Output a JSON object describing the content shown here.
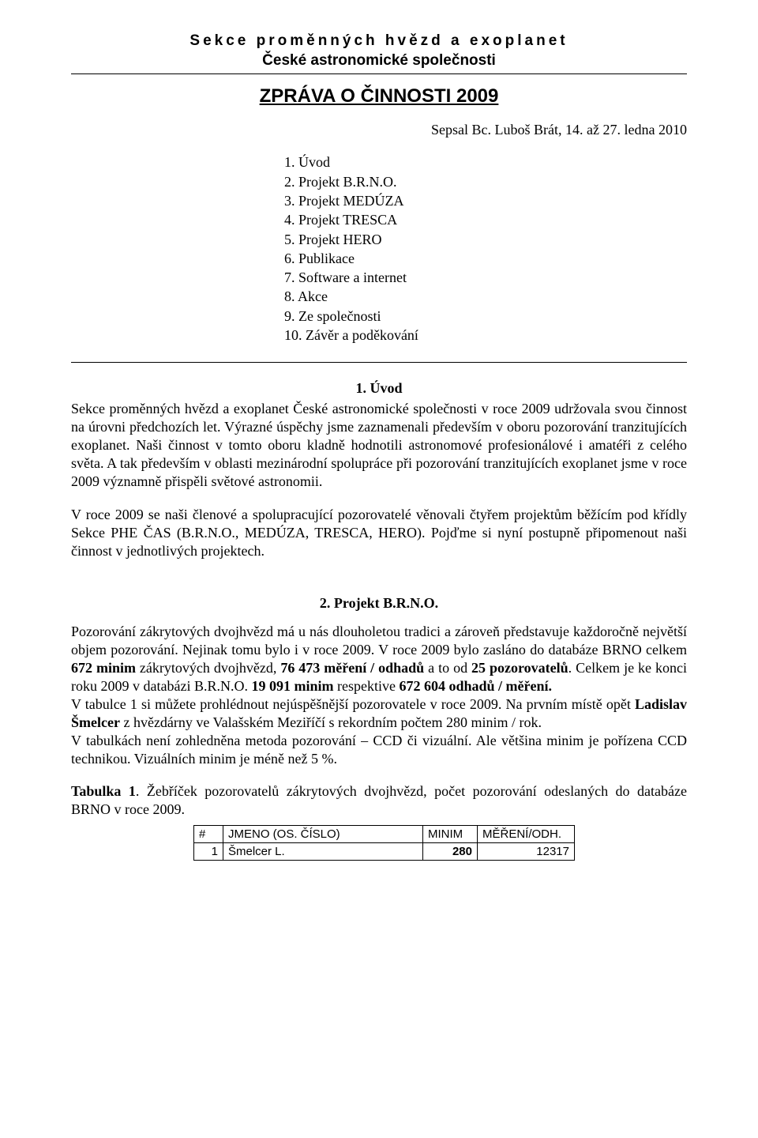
{
  "header": {
    "line1": "Sekce proměnných hvězd a exoplanet",
    "line2": "České astronomické společnosti"
  },
  "report_title": "ZPRÁVA O ČINNOSTI 2009",
  "author": "Sepsal Bc. Luboš Brát, 14. až 27. ledna 2010",
  "toc": [
    "1. Úvod",
    "2. Projekt B.R.N.O.",
    "3. Projekt MEDÚZA",
    "4. Projekt TRESCA",
    "5. Projekt HERO",
    "6. Publikace",
    "7. Software a internet",
    "8. Akce",
    "9. Ze společnosti",
    "10. Závěr a poděkování"
  ],
  "section1": {
    "title": "1. Úvod",
    "p1": "Sekce proměnných hvězd a exoplanet České astronomické společnosti v roce 2009 udržovala svou činnost na úrovni předchozích let. Výrazné úspěchy jsme zaznamenali především v oboru pozorování tranzitujících exoplanet. Naši činnost v tomto oboru kladně hodnotili astronomové profesionálové i amatéři z celého světa. A tak především v oblasti mezinárodní spolupráce při pozorování tranzitujících exoplanet jsme v roce 2009 významně přispěli světové astronomii.",
    "p2": "V roce 2009 se naši členové a spolupracující pozorovatelé věnovali čtyřem projektům běžícím pod křídly Sekce PHE ČAS (B.R.N.O., MEDÚZA, TRESCA, HERO). Pojďme si nyní postupně připomenout naši činnost v jednotlivých projektech."
  },
  "section2": {
    "title": "2. Projekt B.R.N.O.",
    "p1_html": "Pozorování zákrytových dvojhvězd má u nás dlouholetou tradici a zároveň představuje každoročně největší objem pozorování. Nejinak tomu bylo i v roce 2009. V roce 2009 bylo zasláno do databáze BRNO celkem <b>672 minim</b> zákrytových dvojhvězd, <b>76 473 měření / odhadů</b> a to od <b>25 pozorovatelů</b>. Celkem je ke konci roku 2009 v databázi B.R.N.O. <b>19 091 minim</b> respektive <b>672 604 odhadů / měření.</b>",
    "p2_html": "V tabulce 1 si můžete prohlédnout nejúspěšnější pozorovatele v roce 2009. Na prvním místě opět <b>Ladislav Šmelcer</b> z hvězdárny ve Valašském Meziříčí s rekordním počtem 280 minim / rok.",
    "p3": "V tabulkách není zohledněna metoda pozorování – CCD či vizuální. Ale většina minim je pořízena CCD technikou. Vizuálních minim je méně než 5 %.",
    "table_caption_html": "<b>Tabulka 1</b>. Žebříček pozorovatelů zákrytových dvojhvězd, počet pozorování odeslaných do databáze BRNO v roce 2009.",
    "table": {
      "headers": [
        "#",
        "JMENO (OS. ČÍSLO)",
        "MINIM",
        "MĚŘENÍ/ODH."
      ],
      "row": {
        "idx": "1",
        "name": "Šmelcer L.",
        "minim": "280",
        "meas": "12317"
      }
    }
  }
}
